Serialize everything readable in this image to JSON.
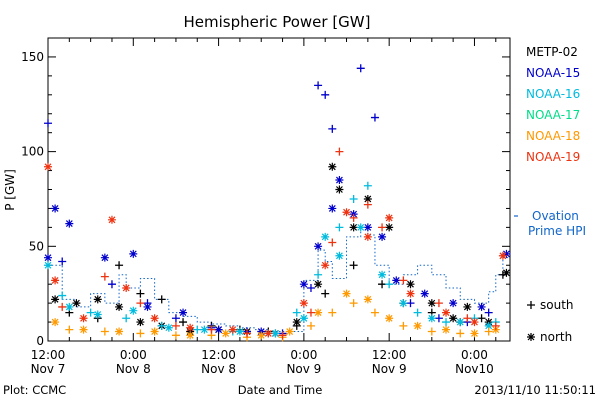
{
  "chart_data": {
    "type": "scatter",
    "title": "Hemispheric Power [GW]",
    "ylabel": "P [GW]",
    "xlabel": "Date and Time",
    "footer_left": "Plot: CCMC",
    "footer_right": "2013/11/10 11:50:11",
    "xlim": [
      0,
      65
    ],
    "ylim": [
      0,
      160
    ],
    "yticks": [
      0,
      50,
      100,
      150
    ],
    "xticks": [
      {
        "x": 0,
        "line1": "12:00",
        "line2": "Nov 7"
      },
      {
        "x": 12,
        "line1": "0:00",
        "line2": "Nov 8"
      },
      {
        "x": 24,
        "line1": "12:00",
        "line2": "Nov 8"
      },
      {
        "x": 36,
        "line1": "0:00",
        "line2": "Nov 9"
      },
      {
        "x": 48,
        "line1": "12:00",
        "line2": "Nov 9"
      },
      {
        "x": 60,
        "line1": "0:00",
        "line2": "Nov10"
      }
    ],
    "x_unit": "hours since 2013-11-07 12:00 UT",
    "grid": false,
    "legend_position": "right",
    "series": [
      {
        "name": "METP-02",
        "color": "#000000",
        "south": [
          [
            3,
            15
          ],
          [
            7,
            12
          ],
          [
            10,
            40
          ],
          [
            13,
            25
          ],
          [
            16,
            22
          ],
          [
            19,
            10
          ],
          [
            23,
            8
          ],
          [
            27,
            6
          ],
          [
            31,
            5
          ],
          [
            35,
            8
          ],
          [
            39,
            25
          ],
          [
            43,
            40
          ],
          [
            47,
            30
          ],
          [
            50,
            20
          ],
          [
            54,
            15
          ],
          [
            58,
            10
          ],
          [
            61,
            12
          ],
          [
            64,
            35
          ]
        ],
        "north": [
          [
            1,
            22
          ],
          [
            4,
            20
          ],
          [
            7,
            22
          ],
          [
            10,
            18
          ],
          [
            13,
            10
          ],
          [
            16,
            8
          ],
          [
            20,
            5
          ],
          [
            24,
            6
          ],
          [
            28,
            5
          ],
          [
            32,
            4
          ],
          [
            35,
            10
          ],
          [
            38,
            30
          ],
          [
            40,
            92
          ],
          [
            41,
            80
          ],
          [
            43,
            60
          ],
          [
            45,
            75
          ],
          [
            48,
            60
          ],
          [
            51,
            30
          ],
          [
            54,
            20
          ],
          [
            57,
            12
          ],
          [
            59,
            18
          ],
          [
            62,
            10
          ],
          [
            64.5,
            36
          ]
        ]
      },
      {
        "name": "NOAA-15",
        "color": "#0000cc",
        "south": [
          [
            0,
            115
          ],
          [
            2,
            42
          ],
          [
            9,
            30
          ],
          [
            14,
            20
          ],
          [
            18,
            12
          ],
          [
            23,
            7
          ],
          [
            28,
            5
          ],
          [
            33,
            4
          ],
          [
            37,
            28
          ],
          [
            38,
            135
          ],
          [
            39,
            130
          ],
          [
            40,
            112
          ],
          [
            44,
            144
          ],
          [
            46,
            118
          ],
          [
            51,
            20
          ],
          [
            55,
            12
          ],
          [
            59,
            10
          ],
          [
            62,
            15
          ]
        ],
        "north": [
          [
            0,
            44
          ],
          [
            1,
            70
          ],
          [
            3,
            62
          ],
          [
            8,
            44
          ],
          [
            12,
            46
          ],
          [
            14,
            18
          ],
          [
            19,
            15
          ],
          [
            24,
            6
          ],
          [
            30,
            5
          ],
          [
            36,
            30
          ],
          [
            38,
            50
          ],
          [
            40,
            70
          ],
          [
            41,
            85
          ],
          [
            43,
            67
          ],
          [
            45,
            60
          ],
          [
            47,
            55
          ],
          [
            49,
            32
          ],
          [
            53,
            25
          ],
          [
            57,
            20
          ],
          [
            61,
            18
          ],
          [
            64.5,
            46
          ]
        ]
      },
      {
        "name": "NOAA-16",
        "color": "#00bbdd",
        "south": [
          [
            2,
            24
          ],
          [
            6,
            15
          ],
          [
            11,
            12
          ],
          [
            16,
            8
          ],
          [
            21,
            6
          ],
          [
            26,
            5
          ],
          [
            31,
            4
          ],
          [
            35,
            15
          ],
          [
            38,
            35
          ],
          [
            41,
            60
          ],
          [
            43,
            75
          ],
          [
            45,
            82
          ],
          [
            48,
            30
          ],
          [
            52,
            15
          ],
          [
            56,
            10
          ],
          [
            60,
            12
          ],
          [
            63,
            10
          ]
        ],
        "north": [
          [
            0,
            40
          ],
          [
            3,
            18
          ],
          [
            7,
            14
          ],
          [
            12,
            16
          ],
          [
            17,
            7
          ],
          [
            22,
            6
          ],
          [
            27,
            5
          ],
          [
            32,
            4
          ],
          [
            36,
            12
          ],
          [
            39,
            55
          ],
          [
            41,
            45
          ],
          [
            44,
            60
          ],
          [
            47,
            35
          ],
          [
            50,
            20
          ],
          [
            54,
            12
          ],
          [
            58,
            10
          ],
          [
            62,
            8
          ]
        ]
      },
      {
        "name": "NOAA-17",
        "color": "#00dd88",
        "south": [],
        "north": []
      },
      {
        "name": "NOAA-18",
        "color": "#ff9900",
        "south": [
          [
            3,
            6
          ],
          [
            8,
            5
          ],
          [
            13,
            4
          ],
          [
            18,
            3
          ],
          [
            23,
            3
          ],
          [
            28,
            2
          ],
          [
            33,
            2
          ],
          [
            37,
            8
          ],
          [
            40,
            15
          ],
          [
            43,
            20
          ],
          [
            46,
            15
          ],
          [
            50,
            8
          ],
          [
            54,
            5
          ],
          [
            58,
            4
          ],
          [
            62,
            5
          ]
        ],
        "north": [
          [
            1,
            10
          ],
          [
            5,
            6
          ],
          [
            10,
            5
          ],
          [
            15,
            5
          ],
          [
            20,
            3
          ],
          [
            25,
            4
          ],
          [
            30,
            3
          ],
          [
            34,
            5
          ],
          [
            38,
            15
          ],
          [
            42,
            25
          ],
          [
            45,
            22
          ],
          [
            48,
            12
          ],
          [
            52,
            8
          ],
          [
            56,
            6
          ],
          [
            60,
            4
          ],
          [
            63,
            6
          ]
        ]
      },
      {
        "name": "NOAA-19",
        "color": "#ee3311",
        "south": [
          [
            2,
            18
          ],
          [
            8,
            34
          ],
          [
            13,
            20
          ],
          [
            18,
            8
          ],
          [
            23,
            6
          ],
          [
            28,
            4
          ],
          [
            33,
            3
          ],
          [
            37,
            15
          ],
          [
            40,
            52
          ],
          [
            41,
            100
          ],
          [
            43,
            65
          ],
          [
            45,
            72
          ],
          [
            47,
            60
          ],
          [
            50,
            32
          ],
          [
            55,
            20
          ],
          [
            59,
            12
          ],
          [
            63,
            8
          ]
        ],
        "north": [
          [
            0,
            92
          ],
          [
            1,
            32
          ],
          [
            5,
            12
          ],
          [
            9,
            64
          ],
          [
            11,
            28
          ],
          [
            15,
            12
          ],
          [
            20,
            7
          ],
          [
            26,
            6
          ],
          [
            31,
            4
          ],
          [
            36,
            20
          ],
          [
            39,
            40
          ],
          [
            42,
            68
          ],
          [
            45,
            55
          ],
          [
            48,
            65
          ],
          [
            51,
            25
          ],
          [
            56,
            15
          ],
          [
            60,
            10
          ],
          [
            64,
            45
          ]
        ]
      }
    ],
    "ovation": {
      "name": "Ovation Prime HPI",
      "color": "#1166cc",
      "steps": [
        [
          0,
          40
        ],
        [
          2,
          22
        ],
        [
          4,
          18
        ],
        [
          6,
          25
        ],
        [
          8,
          20
        ],
        [
          10,
          35
        ],
        [
          11,
          28
        ],
        [
          13,
          33
        ],
        [
          15,
          22
        ],
        [
          17,
          15
        ],
        [
          19,
          13
        ],
        [
          21,
          10
        ],
        [
          23,
          9
        ],
        [
          25,
          8
        ],
        [
          27,
          7
        ],
        [
          29,
          6
        ],
        [
          31,
          5
        ],
        [
          34,
          5
        ],
        [
          36,
          32
        ],
        [
          38,
          48
        ],
        [
          39,
          42
        ],
        [
          40,
          33
        ],
        [
          42,
          55
        ],
        [
          44,
          60
        ],
        [
          45,
          56
        ],
        [
          46,
          40
        ],
        [
          48,
          30
        ],
        [
          50,
          35
        ],
        [
          52,
          40
        ],
        [
          54,
          35
        ],
        [
          56,
          28
        ],
        [
          58,
          22
        ],
        [
          60,
          20
        ],
        [
          62,
          26
        ],
        [
          63,
          35
        ],
        [
          64,
          44
        ],
        [
          65,
          44
        ]
      ]
    },
    "legend_markers": [
      {
        "symbol": "+",
        "label": "south"
      },
      {
        "symbol": "*",
        "label": "north"
      }
    ]
  }
}
